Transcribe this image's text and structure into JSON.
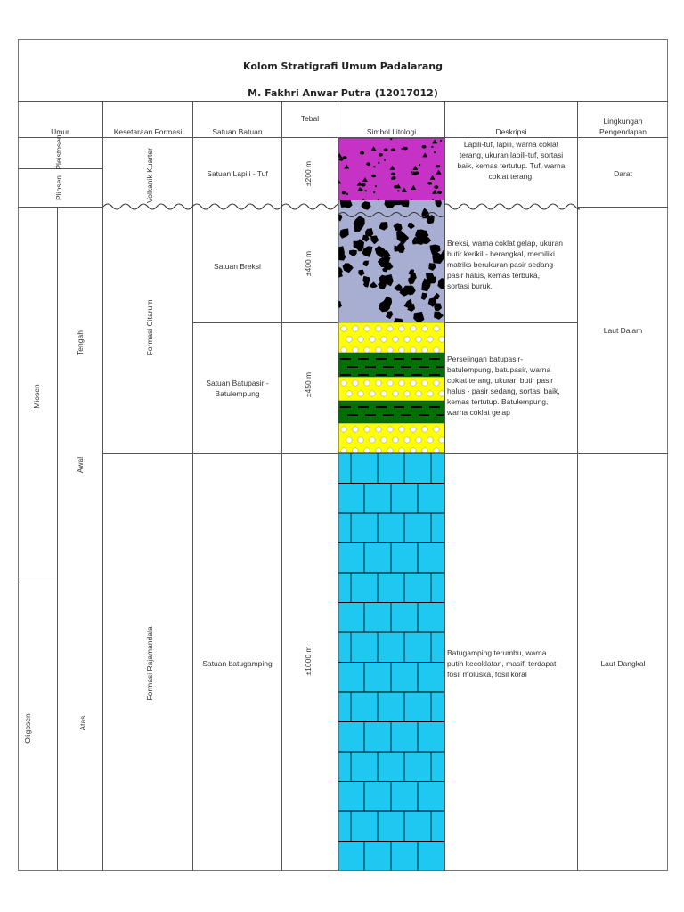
{
  "title": "Kolom Stratigrafi Umum Padalarang",
  "subtitle": "M. Fakhri Anwar Putra (12017012)",
  "headers": {
    "umur": "Umur",
    "kesetaraan": "Kesetaraan Formasi",
    "satuan": "Satuan Batuan",
    "tebal": "Tebal",
    "simbol": "Simbol Litologi",
    "deskripsi": "Deskripsi",
    "lingkungan_1": "Lingkungan",
    "lingkungan_2": "Pengendapan"
  },
  "epochs": {
    "pleistosen": "Pleistosen",
    "pliosen": "Pliosen",
    "miosen": "Miosen",
    "oligosen": "Oligosen"
  },
  "sub_epochs": {
    "tengah": "Tengah",
    "awal": "Awal",
    "atas": "Atas"
  },
  "formations": {
    "vulkanik": "Volkanik Kuarter",
    "citarum": "Formasi Citarum",
    "rajamandala": "Formasi Rajamandala"
  },
  "units": {
    "lapili": "Satuan Lapili - Tuf",
    "breksi": "Satuan Breksi",
    "batupasir_1": "Satuan Batupasir -",
    "batupasir_2": "Batulempung",
    "batugamping": "Satuan batugamping"
  },
  "thickness": {
    "lapili": "±200 m",
    "breksi": "±400 m",
    "batupasir": "±450 m",
    "batugamping": "±1000 m"
  },
  "descriptions": {
    "lapili": [
      "Lapili-tuf, lapili, warna coklat",
      "terang, ukuran lapili-tuf, sortasi",
      "baik, kemas tertutup. Tuf, warna",
      "coklat terang."
    ],
    "breksi": [
      "Breksi, warna coklat gelap, ukuran",
      "butir kerikil - berangkal, memiliki",
      "matriks berukuran pasir sedang-",
      "pasir halus, kemas terbuka,",
      "sortasi buruk."
    ],
    "batupasir": [
      "Perselingan batupasir-",
      "batulempung, batupasir, warna",
      "coklat terang, ukuran butir pasir",
      "halus - pasir sedang, sortasi baik,",
      "kemas tertutup. Batulempung,",
      "warna coklat gelap"
    ],
    "batugamping": [
      "Batugamping terumbu, warna",
      "putih kecoklatan, masif, terdapat",
      "fosil moluska, fosil koral"
    ]
  },
  "environments": {
    "darat": "Darat",
    "laut_dalam": "Laut Dalam",
    "laut_dangkal": "Laut Dangkal"
  },
  "colors": {
    "tuff": "#c532c5",
    "breccia": "#a7aed1",
    "sandstone": "#ffff00",
    "claystone": "#007000",
    "limestone": "#1ec8f0"
  }
}
